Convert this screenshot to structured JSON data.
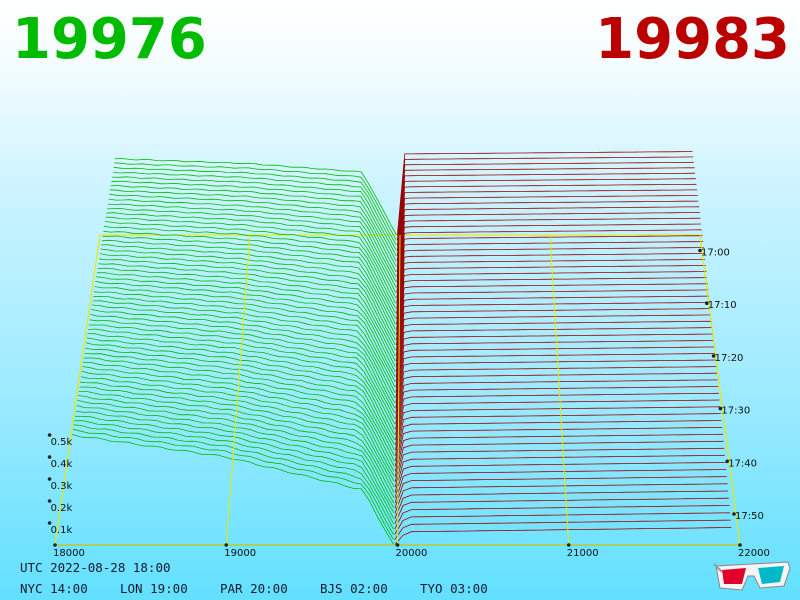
{
  "prices": {
    "bid": "19976",
    "ask": "19983",
    "bid_color": "#00bb00",
    "ask_color": "#bb0000"
  },
  "footer": {
    "utc": "UTC 2022-08-28 18:00",
    "zones": [
      {
        "label": "NYC 14:00"
      },
      {
        "label": "LON 19:00"
      },
      {
        "label": "PAR 20:00"
      },
      {
        "label": "BJS 02:00"
      },
      {
        "label": "TYO 03:00"
      }
    ],
    "icon": "3d-glasses-icon"
  },
  "chart_data": {
    "type": "area",
    "title": "",
    "x_ticks": [
      "18000",
      "19000",
      "20000",
      "21000",
      "22000"
    ],
    "xlim": [
      18000,
      22000
    ],
    "depth_ticks": [
      "0.1k",
      "0.2k",
      "0.3k",
      "0.4k",
      "0.5k"
    ],
    "time_ticks": [
      "17:00",
      "17:10",
      "17:20",
      "17:30",
      "17:40",
      "17:50"
    ],
    "grid": true,
    "series": [
      {
        "name": "",
        "color": "#00bb00",
        "x_range": [
          18000,
          19976
        ]
      },
      {
        "name": "",
        "color": "#990000",
        "x_range": [
          19983,
          22000
        ]
      }
    ],
    "latest_snapshot": {
      "bids": [
        [
          18100,
          0.5
        ],
        [
          19000,
          0.4
        ],
        [
          19800,
          0.25
        ],
        [
          19976,
          0.0
        ]
      ],
      "asks": [
        [
          19983,
          0.0
        ],
        [
          20050,
          0.06
        ],
        [
          22000,
          0.08
        ]
      ]
    },
    "oldest_snapshot": {
      "bids": [
        [
          18100,
          0.63
        ],
        [
          19000,
          0.59
        ],
        [
          19750,
          0.52
        ],
        [
          19976,
          0.0
        ]
      ],
      "asks": [
        [
          19983,
          0.0
        ],
        [
          20030,
          0.05
        ],
        [
          22000,
          0.07
        ]
      ]
    }
  }
}
